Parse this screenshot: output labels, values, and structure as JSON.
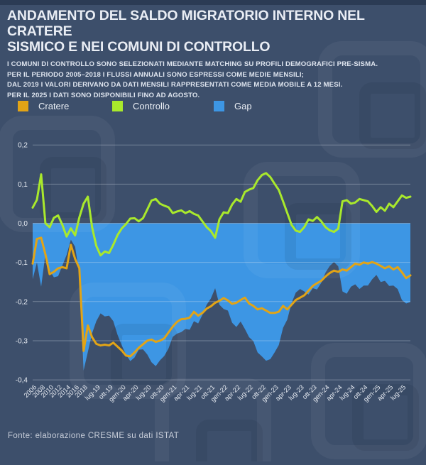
{
  "header": {
    "title_lines": [
      "ANDAMENTO DEL SALDO MIGRATORIO INTERNO NEL CRATERE",
      "SISMICO E NEI COMUNI DI CONTROLLO"
    ],
    "subtitle_lines": [
      "I COMUNI DI CONTROLLO SONO SELEZIONATI MEDIANTE MATCHING SU PROFILI DEMOGRAFICI PRE-SISMA.",
      "PER IL PERIODO 2005–2018 I FLUSSI ANNUALI SONO ESPRESSI COME MEDIE MENSILI;",
      "DAL 2019 I VALORI DERIVANO DA DATI MENSILI RAPPRESENTATI COME MEDIA MOBILE A 12 MESI.",
      "PER IL 2025 I DATI SONO DISPONIBILI FINO AD AGOSTO."
    ]
  },
  "legend": {
    "items": [
      {
        "label": "Cratere",
        "color": "#E2A416"
      },
      {
        "label": "Controllo",
        "color": "#A9E92C"
      },
      {
        "label": "Gap",
        "color": "#3D96E4"
      }
    ]
  },
  "footer": {
    "source": "Fonte: elaborazione CRESME su dati ISTAT"
  },
  "chart_data": {
    "type": "line",
    "title": "Andamento del saldo migratorio interno nel cratere sismico e nei comuni di controllo",
    "ylim": [
      -0.4,
      0.2
    ],
    "grid": true,
    "legend_position": "top",
    "background_color": "#3D4F6B",
    "gap_note": "Gap area = Cratere - Controllo, filled from 0 line",
    "categories": [
      "2005",
      "2006",
      "2007",
      "2008",
      "2009",
      "2010",
      "2011",
      "2012",
      "2013",
      "2014",
      "2015",
      "2016",
      "2017",
      "2018",
      "mag-19",
      "giu-19",
      "lug-19",
      "ago-19",
      "set-19",
      "ott-19",
      "nov-19",
      "dic-19",
      "gen-20",
      "feb-20",
      "mar-20",
      "apr-20",
      "mag-20",
      "giu-20",
      "lug-20",
      "ago-20",
      "set-20",
      "ott-20",
      "nov-20",
      "dic-20",
      "gen-21",
      "feb-21",
      "mar-21",
      "apr-21",
      "mag-21",
      "giu-21",
      "lug-21",
      "ago-21",
      "set-21",
      "ott-21",
      "nov-21",
      "dic-21",
      "gen-22",
      "feb-22",
      "mar-22",
      "apr-22",
      "mag-22",
      "giu-22",
      "lug-22",
      "ago-22",
      "set-22",
      "ott-22",
      "nov-22",
      "dic-22",
      "gen-23",
      "feb-23",
      "mar-23",
      "apr-23",
      "mag-23",
      "giu-23",
      "lug-23",
      "ago-23",
      "set-23",
      "ott-23",
      "nov-23",
      "dic-23",
      "gen-24",
      "feb-24",
      "mar-24",
      "apr-24",
      "mag-24",
      "giu-24",
      "lug-24",
      "ago-24",
      "set-24",
      "ott-24",
      "nov-24",
      "dic-24",
      "gen-25",
      "feb-25",
      "mar-25",
      "apr-25",
      "mag-25",
      "giu-25",
      "lug-25",
      "ago-25"
    ],
    "x_tick_indices": [
      1,
      3,
      5,
      7,
      9,
      11,
      13,
      16,
      19,
      22,
      25,
      28,
      31,
      34,
      37,
      40,
      43,
      46,
      49,
      52,
      55,
      58,
      61,
      64,
      67,
      70,
      73,
      76,
      79,
      82,
      85,
      88
    ],
    "y_ticks": [
      {
        "v": 0.2,
        "label": "0,2"
      },
      {
        "v": 0.1,
        "label": "0,1"
      },
      {
        "v": 0.0,
        "label": "0,0"
      },
      {
        "v": -0.1,
        "label": "-0,1"
      },
      {
        "v": -0.2,
        "label": "-0,2"
      },
      {
        "v": -0.3,
        "label": "-0,3"
      },
      {
        "v": -0.4,
        "label": "-0,4"
      }
    ],
    "series": [
      {
        "name": "Cratere",
        "color": "#E2A416",
        "values": [
          -0.103,
          -0.04,
          -0.037,
          -0.079,
          -0.13,
          -0.124,
          -0.115,
          -0.112,
          -0.115,
          -0.055,
          -0.091,
          -0.115,
          -0.326,
          -0.261,
          -0.291,
          -0.308,
          -0.312,
          -0.31,
          -0.312,
          -0.305,
          -0.315,
          -0.325,
          -0.338,
          -0.34,
          -0.33,
          -0.318,
          -0.309,
          -0.3,
          -0.297,
          -0.303,
          -0.3,
          -0.294,
          -0.279,
          -0.264,
          -0.252,
          -0.245,
          -0.244,
          -0.241,
          -0.226,
          -0.236,
          -0.229,
          -0.218,
          -0.212,
          -0.203,
          -0.198,
          -0.191,
          -0.197,
          -0.206,
          -0.203,
          -0.196,
          -0.19,
          -0.205,
          -0.211,
          -0.22,
          -0.217,
          -0.223,
          -0.229,
          -0.229,
          -0.226,
          -0.211,
          -0.22,
          -0.208,
          -0.196,
          -0.19,
          -0.184,
          -0.172,
          -0.16,
          -0.153,
          -0.147,
          -0.136,
          -0.127,
          -0.121,
          -0.124,
          -0.118,
          -0.121,
          -0.112,
          -0.103,
          -0.106,
          -0.1,
          -0.103,
          -0.099,
          -0.103,
          -0.109,
          -0.115,
          -0.11,
          -0.118,
          -0.112,
          -0.125,
          -0.14,
          -0.133
        ]
      },
      {
        "name": "Controllo",
        "color": "#A9E92C",
        "values": [
          0.04,
          0.06,
          0.125,
          0.0,
          -0.01,
          0.014,
          0.02,
          -0.004,
          -0.034,
          -0.013,
          -0.031,
          0.015,
          0.05,
          0.068,
          -0.01,
          -0.058,
          -0.082,
          -0.072,
          -0.076,
          -0.055,
          -0.03,
          -0.013,
          -0.002,
          0.012,
          0.013,
          0.005,
          0.013,
          0.035,
          0.058,
          0.062,
          0.05,
          0.045,
          0.041,
          0.026,
          0.03,
          0.033,
          0.026,
          0.031,
          0.024,
          0.02,
          0.005,
          -0.01,
          -0.02,
          -0.037,
          0.01,
          0.028,
          0.026,
          0.048,
          0.062,
          0.055,
          0.08,
          0.086,
          0.09,
          0.11,
          0.123,
          0.128,
          0.118,
          0.101,
          0.085,
          0.056,
          0.026,
          -0.004,
          -0.019,
          -0.022,
          -0.01,
          0.01,
          0.006,
          0.016,
          0.005,
          -0.01,
          -0.018,
          -0.022,
          -0.014,
          0.056,
          0.059,
          0.05,
          0.053,
          0.062,
          0.059,
          0.056,
          0.044,
          0.029,
          0.041,
          0.032,
          0.05,
          0.041,
          0.056,
          0.071,
          0.065,
          0.068
        ]
      }
    ],
    "gap_series": {
      "name": "Gap",
      "color": "#3D96E4"
    }
  }
}
